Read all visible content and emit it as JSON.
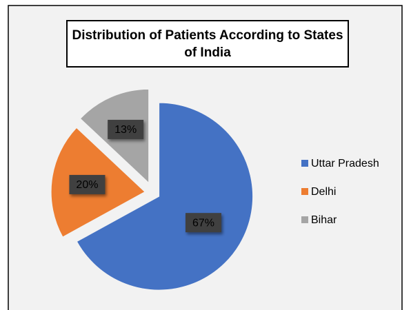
{
  "chart_data": {
    "type": "pie",
    "title": "Distribution of Patients According to States of India",
    "categories": [
      "Uttar Pradesh",
      "Delhi",
      "Bihar"
    ],
    "values": [
      67,
      20,
      13
    ],
    "value_labels": [
      "67%",
      "20%",
      "13%"
    ],
    "colors": [
      "#4472c4",
      "#ed7d31",
      "#a5a5a5"
    ],
    "legend": "right"
  }
}
